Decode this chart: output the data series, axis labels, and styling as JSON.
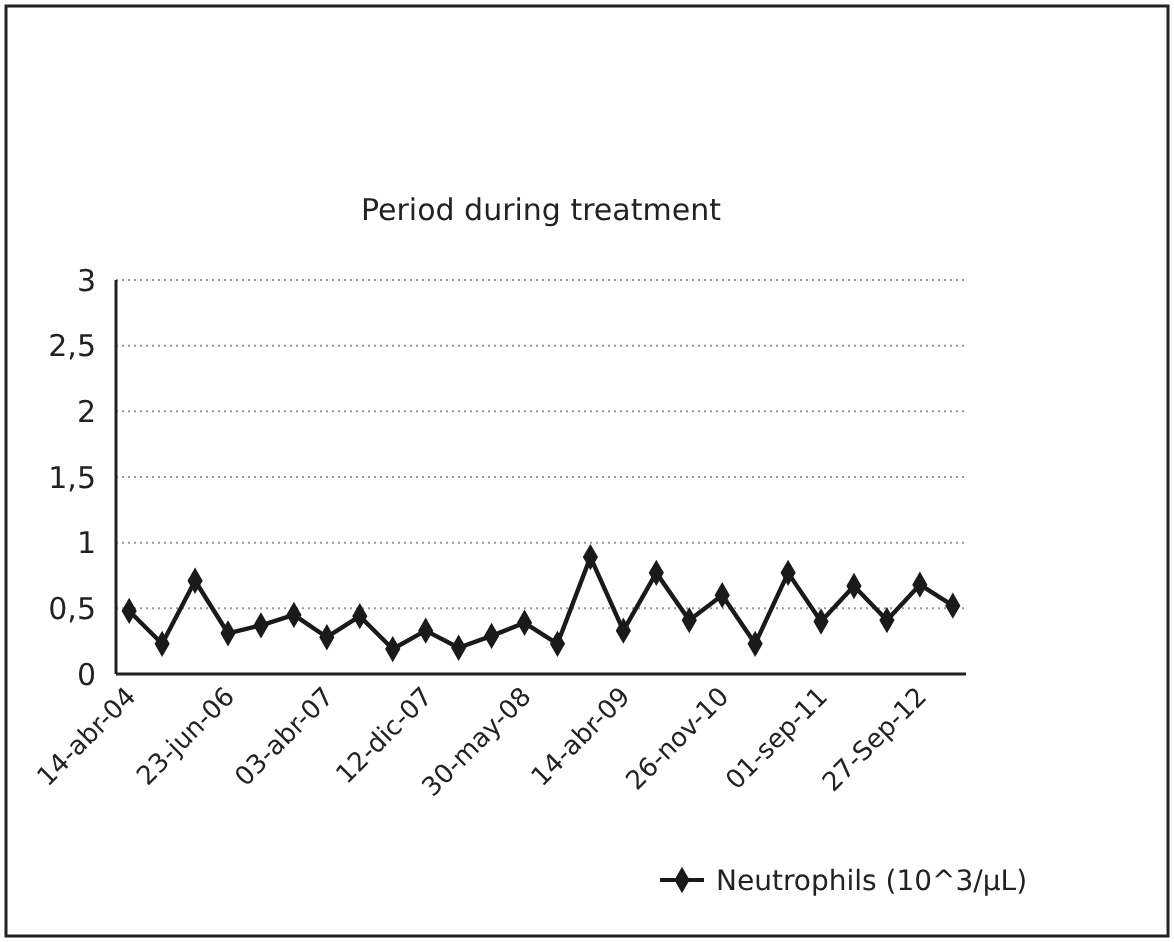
{
  "chart_data": {
    "type": "line",
    "title": "Period during treatment",
    "categories": [
      "14-abr-04",
      null,
      null,
      "23-jun-06",
      null,
      null,
      "03-abr-07",
      null,
      null,
      "12-dic-07",
      null,
      null,
      "30-may-08",
      null,
      null,
      "14-abr-09",
      null,
      null,
      "26-nov-10",
      null,
      null,
      "01-sep-11",
      null,
      null,
      "27-Sep-12",
      null
    ],
    "series": [
      {
        "name": "Neutrophils (10^3/μL)",
        "color": "#1a1a1a",
        "values": [
          0.48,
          0.23,
          0.71,
          0.31,
          0.37,
          0.45,
          0.28,
          0.44,
          0.19,
          0.33,
          0.2,
          0.29,
          0.39,
          0.23,
          0.89,
          0.33,
          0.77,
          0.41,
          0.6,
          0.23,
          0.77,
          0.4,
          0.67,
          0.41,
          0.68,
          0.52
        ]
      }
    ],
    "ylim": [
      0,
      3
    ],
    "yticks": [
      0,
      {
        "value": 0.5,
        "label": "0,5"
      },
      1,
      {
        "value": 1.5,
        "label": "1,5"
      },
      2,
      {
        "value": 2.5,
        "label": "2,5"
      },
      3
    ],
    "grid": "y",
    "legend": "bottom right",
    "marker": "diamond",
    "line_style": "solid"
  }
}
